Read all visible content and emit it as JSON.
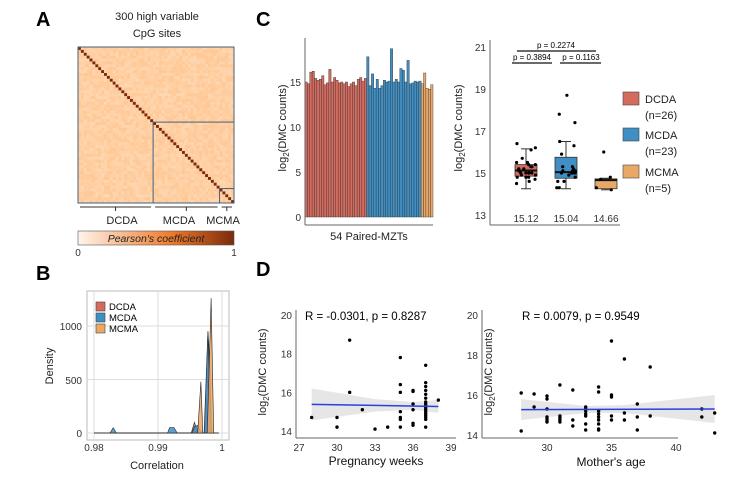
{
  "panels": {
    "a": "A",
    "b": "B",
    "c": "C",
    "d": "D"
  },
  "colors": {
    "DCDA": "#d46b5e",
    "MCDA": "#3f8fc4",
    "MCMA": "#eaa866",
    "line": "#2b3fe0",
    "frame": "#46607e"
  },
  "chart_data": [
    {
      "type": "heatmap",
      "title_lines": [
        "300 high variable",
        "CpG sites"
      ],
      "groups": [
        {
          "name": "DCDA",
          "n": 26
        },
        {
          "name": "MCDA",
          "n": 23
        },
        {
          "name": "MCMA",
          "n": 5
        }
      ],
      "diagonal": 1,
      "colorbar": {
        "label": "Pearson's coefficient",
        "min": "0",
        "max": "1"
      }
    },
    {
      "type": "area",
      "xlabel": "Correlation",
      "ylabel": "Density",
      "xlim": [
        0.98,
        1.0
      ],
      "ylim": [
        0,
        1300
      ],
      "xticks": [
        "0.98",
        "0.99",
        "1"
      ],
      "yticks": [
        "0",
        "500",
        "1000"
      ],
      "grid": true,
      "legend": "top-left",
      "series": [
        {
          "name": "DCDA",
          "points": [
            [
              0.9952,
              0
            ],
            [
              0.9957,
              100
            ],
            [
              0.9962,
              0
            ],
            [
              0.9973,
              0
            ],
            [
              0.9978,
              950
            ],
            [
              0.9981,
              650
            ],
            [
              0.9984,
              0
            ]
          ]
        },
        {
          "name": "MCDA",
          "points": [
            [
              0.9825,
              0
            ],
            [
              0.983,
              50
            ],
            [
              0.9835,
              0
            ],
            [
              0.9915,
              0
            ],
            [
              0.9918,
              50
            ],
            [
              0.9925,
              50
            ],
            [
              0.993,
              0
            ],
            [
              0.9953,
              0
            ],
            [
              0.9957,
              60
            ],
            [
              0.9962,
              70
            ],
            [
              0.9968,
              0
            ],
            [
              0.9972,
              0
            ],
            [
              0.9978,
              950
            ],
            [
              0.9983,
              0
            ]
          ]
        },
        {
          "name": "MCMA",
          "points": [
            [
              0.9962,
              0
            ],
            [
              0.9967,
              480
            ],
            [
              0.997,
              0
            ],
            [
              0.9977,
              0
            ],
            [
              0.9983,
              1260
            ],
            [
              0.9987,
              0
            ]
          ]
        }
      ]
    },
    {
      "type": "bar",
      "xlabel": "54 Paired-MZTs",
      "ylabel": {
        "pre": "log",
        "sub": "2",
        "post": "(DMC counts)"
      },
      "ylim": [
        0,
        20
      ],
      "yticks": [
        "0",
        "5",
        "10",
        "15"
      ],
      "series": [
        {
          "name": "DCDA",
          "values": [
            15.0,
            14.8,
            16.1,
            16.2,
            15.4,
            15.2,
            15.3,
            15.7,
            14.7,
            14.9,
            16.4,
            15.0,
            15.5,
            15.2,
            14.9,
            15.0,
            14.8,
            15.0,
            14.5,
            14.8,
            15.0,
            14.6,
            15.3,
            15.5,
            15.1,
            15.4
          ]
        },
        {
          "name": "MCDA",
          "values": [
            17.8,
            14.6,
            15.9,
            14.3,
            15.3,
            14.3,
            14.6,
            15.2,
            15.0,
            15.1,
            18.7,
            15.0,
            15.3,
            15.0,
            16.5,
            16.3,
            15.0,
            17.4,
            14.8,
            14.9,
            15.1,
            15.0,
            15.1
          ]
        },
        {
          "name": "MCMA",
          "values": [
            14.8,
            16.0,
            14.3,
            14.2,
            14.7
          ]
        }
      ]
    },
    {
      "type": "box",
      "ylabel": {
        "pre": "log",
        "sub": "2",
        "post": "(DMC counts)"
      },
      "ylim": [
        13,
        21
      ],
      "yticks": [
        "13",
        "15",
        "17",
        "19",
        "21"
      ],
      "boxes": [
        {
          "name": "DCDA",
          "q1": 14.85,
          "median": 15.12,
          "q3": 15.4,
          "whisker_low": 14.25,
          "whisker_high": 16.15,
          "median_label": "15.12"
        },
        {
          "name": "MCDA",
          "q1": 14.75,
          "median": 15.04,
          "q3": 15.75,
          "whisker_low": 14.25,
          "whisker_high": 16.5,
          "median_label": "15.04"
        },
        {
          "name": "MCMA",
          "q1": 14.25,
          "median": 14.66,
          "q3": 14.72,
          "whisker_low": 14.2,
          "whisker_high": 14.75,
          "median_label": "14.66"
        }
      ],
      "comparisons": [
        {
          "groups": [
            "DCDA",
            "MCMA"
          ],
          "label": "p = 0.2274"
        },
        {
          "groups": [
            "DCDA",
            "MCDA"
          ],
          "label": "p = 0.3894"
        },
        {
          "groups": [
            "MCDA",
            "MCMA"
          ],
          "label": "p = 0.1163"
        }
      ],
      "legend": [
        {
          "name": "DCDA",
          "n": "(n=26)"
        },
        {
          "name": "MCDA",
          "n": "(n=23)"
        },
        {
          "name": "MCMA",
          "n": "(n=5)"
        }
      ]
    },
    {
      "type": "scatter",
      "annotation": "R = -0.0301, p = 0.8287",
      "xlabel": "Pregnancy weeks",
      "ylabel": {
        "pre": "log",
        "sub": "2",
        "post": "(DMC counts)"
      },
      "xlim": [
        27,
        39
      ],
      "ylim": [
        14,
        20
      ],
      "xticks": [
        "27",
        "30",
        "33",
        "36",
        "39"
      ],
      "yticks": [
        "14",
        "16",
        "18",
        "20"
      ],
      "fit": {
        "x": [
          28,
          38
        ],
        "y": [
          15.38,
          15.27
        ],
        "ci": [
          [
            28,
            14.55,
            16.2
          ],
          [
            33,
            15.0,
            15.65
          ],
          [
            36,
            15.1,
            15.5
          ],
          [
            38,
            14.95,
            15.6
          ]
        ]
      },
      "points": [
        [
          28,
          14.7
        ],
        [
          30,
          14.7
        ],
        [
          30,
          14.2
        ],
        [
          31,
          18.7
        ],
        [
          31,
          16.0
        ],
        [
          32,
          15.1
        ],
        [
          33,
          14.1
        ],
        [
          34,
          14.2
        ],
        [
          35,
          17.8
        ],
        [
          35,
          16.4
        ],
        [
          35,
          16.0
        ],
        [
          35,
          15.0
        ],
        [
          35,
          14.7
        ],
        [
          35,
          14.6
        ],
        [
          35,
          14.2
        ],
        [
          36,
          16.1
        ],
        [
          36,
          16.05
        ],
        [
          36,
          15.4
        ],
        [
          36,
          15.1
        ],
        [
          36,
          14.4
        ],
        [
          36,
          14.3
        ],
        [
          37,
          17.4
        ],
        [
          37,
          16.5
        ],
        [
          37,
          16.3
        ],
        [
          37,
          16.1
        ],
        [
          37,
          15.9
        ],
        [
          37,
          15.7
        ],
        [
          37,
          15.5
        ],
        [
          37,
          15.4
        ],
        [
          37,
          15.3
        ],
        [
          37,
          15.2
        ],
        [
          37,
          15.1
        ],
        [
          37,
          15.0
        ],
        [
          37,
          14.9
        ],
        [
          37,
          14.8
        ],
        [
          37,
          14.7
        ],
        [
          37,
          14.6
        ],
        [
          37,
          14.2
        ],
        [
          38,
          15.6
        ]
      ]
    },
    {
      "type": "scatter",
      "annotation": "R = 0.0079, p = 0.9549",
      "xlabel": "Mother's age",
      "ylabel": {
        "pre": "log",
        "sub": "2",
        "post": "(DMC counts)"
      },
      "xlim": [
        25,
        44
      ],
      "ylim": [
        14,
        20
      ],
      "xticks": [
        "30",
        "35",
        "40"
      ],
      "yticks": [
        "14",
        "16",
        "18",
        "20"
      ],
      "fit": {
        "x": [
          28,
          43
        ],
        "y": [
          15.27,
          15.3
        ],
        "ci": [
          [
            28,
            14.75,
            15.8
          ],
          [
            33,
            15.1,
            15.45
          ],
          [
            36,
            15.1,
            15.5
          ],
          [
            43,
            14.6,
            16.0
          ]
        ]
      },
      "points": [
        [
          28,
          16.1
        ],
        [
          28,
          14.2
        ],
        [
          29,
          16.05
        ],
        [
          29,
          15.4
        ],
        [
          30,
          15.95
        ],
        [
          30,
          15.8
        ],
        [
          30,
          15.3
        ],
        [
          30,
          14.9
        ],
        [
          30,
          14.8
        ],
        [
          30,
          14.7
        ],
        [
          30,
          14.65
        ],
        [
          31,
          16.5
        ],
        [
          31,
          14.95
        ],
        [
          31,
          14.85
        ],
        [
          31,
          14.75
        ],
        [
          31,
          14.65
        ],
        [
          32,
          16.25
        ],
        [
          32,
          14.75
        ],
        [
          32,
          14.45
        ],
        [
          33,
          15.4
        ],
        [
          33,
          15.3
        ],
        [
          33,
          15.2
        ],
        [
          33,
          15.05
        ],
        [
          33,
          14.95
        ],
        [
          33,
          14.55
        ],
        [
          33,
          14.25
        ],
        [
          34,
          16.4
        ],
        [
          34,
          16.15
        ],
        [
          34,
          15.2
        ],
        [
          34,
          15.05
        ],
        [
          34,
          14.9
        ],
        [
          34,
          14.75
        ],
        [
          34,
          14.55
        ],
        [
          34,
          14.3
        ],
        [
          34,
          14.25
        ],
        [
          35,
          18.7
        ],
        [
          35,
          16.0
        ],
        [
          35,
          15.9
        ],
        [
          35,
          14.95
        ],
        [
          35,
          14.75
        ],
        [
          36,
          17.8
        ],
        [
          36,
          15.1
        ],
        [
          36,
          14.75
        ],
        [
          37,
          15.55
        ],
        [
          37,
          14.9
        ],
        [
          37,
          14.25
        ],
        [
          38,
          17.4
        ],
        [
          38,
          14.95
        ],
        [
          42,
          15.3
        ],
        [
          42,
          14.9
        ],
        [
          43,
          15.1
        ],
        [
          43,
          14.1
        ]
      ]
    }
  ]
}
